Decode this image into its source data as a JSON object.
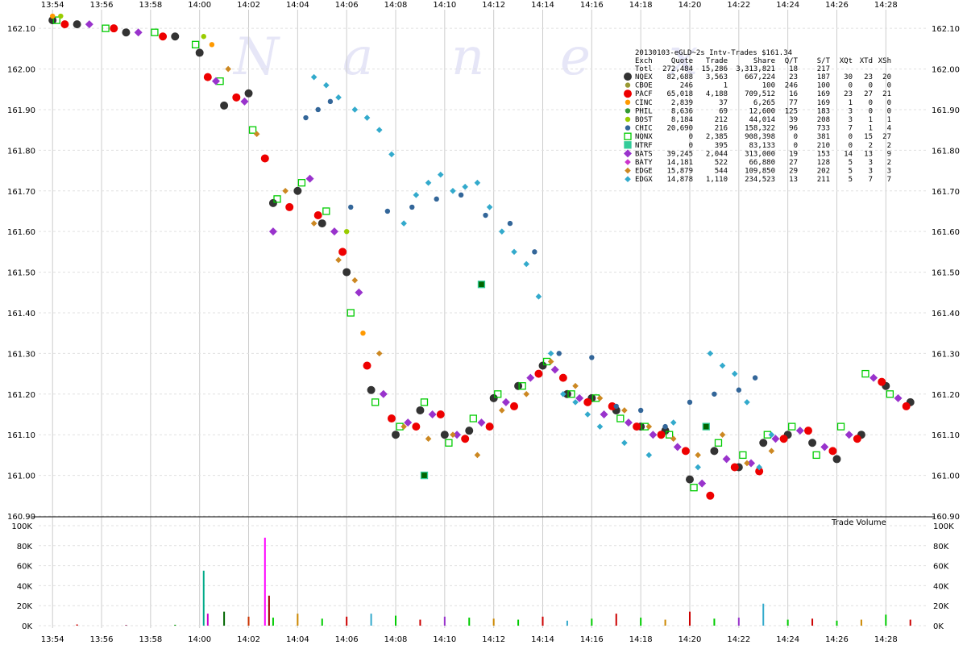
{
  "chart_data": {
    "type": "scatter",
    "title": "20130103-eGLD~2s Intv-Trades $161.34",
    "watermark": "Nanex",
    "x_ticks": [
      "13:54",
      "13:56",
      "13:58",
      "14:00",
      "14:02",
      "14:04",
      "14:06",
      "14:08",
      "14:10",
      "14:12",
      "14:14",
      "14:16",
      "14:18",
      "14:20",
      "14:22",
      "14:24",
      "14:26",
      "14:28"
    ],
    "xlim": [
      "13:53:30",
      "14:29:40"
    ],
    "price_axis": {
      "ticks": [
        "162.10",
        "162.00",
        "161.90",
        "161.80",
        "161.70",
        "161.60",
        "161.50",
        "161.40",
        "161.30",
        "161.20",
        "161.10",
        "161.00",
        "160.90"
      ],
      "ylim": [
        160.9,
        162.14
      ]
    },
    "volume_axis": {
      "title": "Trade Volume",
      "ticks": [
        "100K",
        "80K",
        "60K",
        "40K",
        "20K",
        "0K"
      ],
      "ylim": [
        0,
        100000
      ]
    },
    "grid": true,
    "legend": {
      "placement": "top-right",
      "headers": [
        "Exch",
        "Quote",
        "Trade",
        "Share",
        "Q/T",
        "S/T",
        "XQt",
        "XTd",
        "XSh"
      ],
      "total": [
        "Totl",
        "272,484",
        "15,286",
        "3,313,821",
        "18",
        "217"
      ],
      "rows": [
        {
          "exch": "NQEX",
          "quote": "82,688",
          "trade": "3,563",
          "share": "667,224",
          "qt": "23",
          "st": "187",
          "xqt": "30",
          "xtd": "23",
          "xsh": "20",
          "color": "#333333",
          "marker": "circle-large"
        },
        {
          "exch": "CBOE",
          "quote": "246",
          "trade": "1",
          "share": "100",
          "qt": "246",
          "st": "100",
          "xqt": "0",
          "xtd": "0",
          "xsh": "0",
          "color": "#999933",
          "marker": "circle"
        },
        {
          "exch": "PACF",
          "quote": "65,018",
          "trade": "4,188",
          "share": "709,512",
          "qt": "16",
          "st": "169",
          "xqt": "23",
          "xtd": "27",
          "xsh": "21",
          "color": "#ee0000",
          "marker": "circle-large"
        },
        {
          "exch": "CINC",
          "quote": "2,839",
          "trade": "37",
          "share": "6,265",
          "qt": "77",
          "st": "169",
          "xqt": "1",
          "xtd": "0",
          "xsh": "0",
          "color": "#ff9900",
          "marker": "circle"
        },
        {
          "exch": "PHIL",
          "quote": "8,636",
          "trade": "69",
          "share": "12,600",
          "qt": "125",
          "st": "183",
          "xqt": "3",
          "xtd": "0",
          "xsh": "0",
          "color": "#339933",
          "marker": "circle"
        },
        {
          "exch": "BOST",
          "quote": "8,184",
          "trade": "212",
          "share": "44,014",
          "qt": "39",
          "st": "208",
          "xqt": "3",
          "xtd": "1",
          "xsh": "1",
          "color": "#99cc00",
          "marker": "circle"
        },
        {
          "exch": "CHIC",
          "quote": "20,690",
          "trade": "216",
          "share": "158,322",
          "qt": "96",
          "st": "733",
          "xqt": "7",
          "xtd": "1",
          "xsh": "4",
          "color": "#336699",
          "marker": "circle"
        },
        {
          "exch": "NQNX",
          "quote": "0",
          "trade": "2,385",
          "share": "908,398",
          "qt": "0",
          "st": "381",
          "xqt": "0",
          "xtd": "15",
          "xsh": "27",
          "color": "#00cc00",
          "marker": "square"
        },
        {
          "exch": "NTRF",
          "quote": "0",
          "trade": "395",
          "share": "83,133",
          "qt": "0",
          "st": "210",
          "xqt": "0",
          "xtd": "2",
          "xsh": "2",
          "color": "#33cc99",
          "marker": "square"
        },
        {
          "exch": "BATS",
          "quote": "39,245",
          "trade": "2,044",
          "share": "313,000",
          "qt": "19",
          "st": "153",
          "xqt": "14",
          "xtd": "13",
          "xsh": "9",
          "color": "#9933cc",
          "marker": "diamond-large"
        },
        {
          "exch": "BATY",
          "quote": "14,181",
          "trade": "522",
          "share": "66,880",
          "qt": "27",
          "st": "128",
          "xqt": "5",
          "xtd": "3",
          "xsh": "2",
          "color": "#cc33cc",
          "marker": "diamond"
        },
        {
          "exch": "EDGE",
          "quote": "15,879",
          "trade": "544",
          "share": "109,850",
          "qt": "29",
          "st": "202",
          "xqt": "5",
          "xtd": "3",
          "xsh": "3",
          "color": "#cc8822",
          "marker": "diamond"
        },
        {
          "exch": "EDGX",
          "quote": "14,878",
          "trade": "1,110",
          "share": "234,523",
          "qt": "13",
          "st": "211",
          "xqt": "5",
          "xtd": "7",
          "xsh": "7",
          "color": "#33aacc",
          "marker": "diamond"
        }
      ]
    },
    "series": [
      {
        "exch": "NQEX",
        "x": [
          "13:54:00",
          "13:55:00",
          "13:57:00",
          "13:59:00",
          "14:00:00",
          "14:01:00",
          "14:02:00",
          "14:03:00",
          "14:04:00",
          "14:05:00",
          "14:06:00",
          "14:07:00",
          "14:08:00",
          "14:09:00",
          "14:10:00",
          "14:11:00",
          "14:12:00",
          "14:13:00",
          "14:14:00",
          "14:15:00",
          "14:16:00",
          "14:17:00",
          "14:18:00",
          "14:19:00",
          "14:20:00",
          "14:21:00",
          "14:22:00",
          "14:23:00",
          "14:24:00",
          "14:25:00",
          "14:26:00",
          "14:27:00",
          "14:28:00",
          "14:29:00"
        ],
        "y": [
          162.12,
          162.11,
          162.09,
          162.08,
          162.04,
          161.91,
          161.94,
          161.67,
          161.7,
          161.62,
          161.5,
          161.21,
          161.1,
          161.16,
          161.1,
          161.11,
          161.19,
          161.22,
          161.27,
          161.2,
          161.19,
          161.16,
          161.12,
          161.11,
          160.99,
          161.06,
          161.02,
          161.08,
          161.1,
          161.08,
          161.04,
          161.1,
          161.22,
          161.18
        ]
      },
      {
        "exch": "PACF",
        "x": [
          "13:54:30",
          "13:56:30",
          "13:58:30",
          "14:00:20",
          "14:01:30",
          "14:02:40",
          "14:03:40",
          "14:04:50",
          "14:05:50",
          "14:06:50",
          "14:07:50",
          "14:08:50",
          "14:09:50",
          "14:10:50",
          "14:11:50",
          "14:12:50",
          "14:13:50",
          "14:14:50",
          "14:15:50",
          "14:16:50",
          "14:17:50",
          "14:18:50",
          "14:19:50",
          "14:20:50",
          "14:21:50",
          "14:22:50",
          "14:23:50",
          "14:24:50",
          "14:25:50",
          "14:26:50",
          "14:27:50",
          "14:28:50"
        ],
        "y": [
          162.11,
          162.1,
          162.08,
          161.98,
          161.93,
          161.78,
          161.66,
          161.64,
          161.55,
          161.27,
          161.14,
          161.12,
          161.15,
          161.09,
          161.12,
          161.17,
          161.25,
          161.24,
          161.18,
          161.17,
          161.12,
          161.1,
          161.06,
          160.95,
          161.02,
          161.01,
          161.09,
          161.11,
          161.06,
          161.09,
          161.23,
          161.17
        ]
      },
      {
        "exch": "NQNX",
        "x": [
          "13:54:10",
          "13:56:10",
          "13:58:10",
          "13:59:50",
          "14:00:50",
          "14:02:10",
          "14:03:10",
          "14:04:10",
          "14:05:10",
          "14:06:10",
          "14:07:10",
          "14:08:10",
          "14:09:10",
          "14:10:10",
          "14:11:10",
          "14:12:10",
          "14:13:10",
          "14:14:10",
          "14:15:10",
          "14:16:10",
          "14:17:10",
          "14:18:10",
          "14:19:10",
          "14:20:10",
          "14:21:10",
          "14:22:10",
          "14:23:10",
          "14:24:10",
          "14:25:10",
          "14:26:10",
          "14:27:10",
          "14:28:10"
        ],
        "y": [
          162.12,
          162.1,
          162.09,
          162.06,
          161.97,
          161.85,
          161.68,
          161.72,
          161.65,
          161.4,
          161.18,
          161.12,
          161.18,
          161.08,
          161.14,
          161.2,
          161.22,
          161.28,
          161.2,
          161.19,
          161.14,
          161.12,
          161.1,
          160.97,
          161.08,
          161.05,
          161.1,
          161.12,
          161.05,
          161.12,
          161.25,
          161.2
        ]
      },
      {
        "exch": "BATS",
        "x": [
          "13:55:30",
          "13:57:30",
          "14:00:40",
          "14:01:50",
          "14:03:00",
          "14:04:30",
          "14:05:30",
          "14:06:30",
          "14:07:30",
          "14:08:30",
          "14:09:30",
          "14:10:30",
          "14:11:30",
          "14:12:30",
          "14:13:30",
          "14:14:30",
          "14:15:30",
          "14:16:30",
          "14:17:30",
          "14:18:30",
          "14:19:30",
          "14:20:30",
          "14:21:30",
          "14:22:30",
          "14:23:30",
          "14:24:30",
          "14:25:30",
          "14:26:30",
          "14:27:30",
          "14:28:30"
        ],
        "y": [
          162.11,
          162.09,
          161.97,
          161.92,
          161.6,
          161.73,
          161.6,
          161.45,
          161.2,
          161.13,
          161.15,
          161.1,
          161.13,
          161.18,
          161.24,
          161.26,
          161.19,
          161.15,
          161.13,
          161.1,
          161.07,
          160.98,
          161.04,
          161.03,
          161.09,
          161.11,
          161.07,
          161.1,
          161.24,
          161.19
        ]
      },
      {
        "exch": "EDGE",
        "x": [
          "14:01:10",
          "14:02:20",
          "14:03:30",
          "14:04:40",
          "14:05:40",
          "14:06:20",
          "14:07:20",
          "14:08:20",
          "14:09:20",
          "14:10:20",
          "14:11:20",
          "14:12:20",
          "14:13:20",
          "14:14:20",
          "14:15:20",
          "14:16:20",
          "14:17:20",
          "14:18:20",
          "14:19:20",
          "14:20:20",
          "14:21:20",
          "14:22:20",
          "14:23:20"
        ],
        "y": [
          162.0,
          161.84,
          161.7,
          161.62,
          161.53,
          161.48,
          161.3,
          161.12,
          161.09,
          161.1,
          161.05,
          161.16,
          161.2,
          161.28,
          161.22,
          161.19,
          161.16,
          161.12,
          161.09,
          161.05,
          161.1,
          161.03,
          161.06
        ]
      },
      {
        "exch": "EDGX",
        "x": [
          "14:04:40",
          "14:05:10",
          "14:05:40",
          "14:06:20",
          "14:06:50",
          "14:07:20",
          "14:07:50",
          "14:08:20",
          "14:08:50",
          "14:09:20",
          "14:09:50",
          "14:10:20",
          "14:10:50",
          "14:11:20",
          "14:11:50",
          "14:12:20",
          "14:12:50",
          "14:13:20",
          "14:13:50",
          "14:14:20",
          "14:14:50",
          "14:15:20",
          "14:15:50",
          "14:16:20",
          "14:17:20",
          "14:18:20",
          "14:19:20",
          "14:20:20",
          "14:20:50",
          "14:21:20",
          "14:21:50",
          "14:22:20",
          "14:22:50",
          "14:23:20"
        ],
        "y": [
          161.98,
          161.96,
          161.93,
          161.9,
          161.88,
          161.85,
          161.79,
          161.62,
          161.69,
          161.72,
          161.74,
          161.7,
          161.71,
          161.72,
          161.66,
          161.6,
          161.55,
          161.52,
          161.44,
          161.3,
          161.2,
          161.18,
          161.15,
          161.12,
          161.08,
          161.05,
          161.13,
          161.02,
          161.3,
          161.27,
          161.25,
          161.18,
          161.02,
          161.1
        ]
      },
      {
        "exch": "CHIC",
        "x": [
          "14:04:20",
          "14:04:50",
          "14:05:20",
          "14:06:10",
          "14:07:40",
          "14:08:40",
          "14:09:40",
          "14:10:40",
          "14:11:40",
          "14:12:40",
          "14:13:40",
          "14:14:40",
          "14:16:00",
          "14:17:00",
          "14:18:00",
          "14:19:00",
          "14:20:00",
          "14:21:00",
          "14:22:00",
          "14:22:40"
        ],
        "y": [
          161.88,
          161.9,
          161.92,
          161.66,
          161.65,
          161.66,
          161.68,
          161.69,
          161.64,
          161.62,
          161.55,
          161.3,
          161.29,
          161.17,
          161.16,
          161.12,
          161.18,
          161.2,
          161.21,
          161.24
        ]
      },
      {
        "exch": "NTRF",
        "x": [
          "14:09:10",
          "14:11:30",
          "14:20:40"
        ],
        "y": [
          161.0,
          161.47,
          161.12
        ]
      },
      {
        "exch": "CINC",
        "x": [
          "13:54:00",
          "14:00:30",
          "14:06:40"
        ],
        "y": [
          162.13,
          162.06,
          161.35
        ]
      },
      {
        "exch": "BOST",
        "x": [
          "13:54:20",
          "14:00:10",
          "14:06:00"
        ],
        "y": [
          162.13,
          162.08,
          161.6
        ]
      }
    ],
    "volume": {
      "x": [
        "13:55:00",
        "13:57:00",
        "13:59:00",
        "14:00:10",
        "14:00:20",
        "14:01:00",
        "14:02:00",
        "14:02:40",
        "14:02:50",
        "14:03:00",
        "14:04:00",
        "14:05:00",
        "14:06:00",
        "14:07:00",
        "14:08:00",
        "14:09:00",
        "14:10:00",
        "14:11:00",
        "14:12:00",
        "14:13:00",
        "14:14:00",
        "14:15:00",
        "14:16:00",
        "14:17:00",
        "14:18:00",
        "14:19:00",
        "14:20:00",
        "14:21:00",
        "14:22:00",
        "14:23:00",
        "14:24:00",
        "14:25:00",
        "14:26:00",
        "14:27:00",
        "14:28:00",
        "14:29:00"
      ],
      "y": [
        1200,
        800,
        900,
        55000,
        12000,
        14000,
        9000,
        88000,
        30000,
        8000,
        12000,
        7000,
        9000,
        12000,
        10000,
        6000,
        9000,
        8000,
        7000,
        6000,
        9000,
        5000,
        7000,
        12000,
        8000,
        6000,
        14000,
        7000,
        8000,
        22000,
        6000,
        7000,
        5000,
        6000,
        11000,
        6000
      ],
      "colors": [
        "#cc0000",
        "#993366",
        "#009900",
        "#00aa88",
        "#cc00cc",
        "#006600",
        "#cc3300",
        "#ff00ff",
        "#990000",
        "#00cc00",
        "#cc8800",
        "#00cc00",
        "#cc0000",
        "#33aacc",
        "#00cc00",
        "#cc0000",
        "#9933cc",
        "#00cc00",
        "#cc8800",
        "#00cc00",
        "#cc0000",
        "#33aacc",
        "#00cc00",
        "#cc0000",
        "#00cc00",
        "#cc8800",
        "#cc0000",
        "#00cc00",
        "#9933cc",
        "#33aacc",
        "#00cc00",
        "#cc0000",
        "#00cc00",
        "#cc8800",
        "#00cc00",
        "#cc0000"
      ]
    }
  }
}
